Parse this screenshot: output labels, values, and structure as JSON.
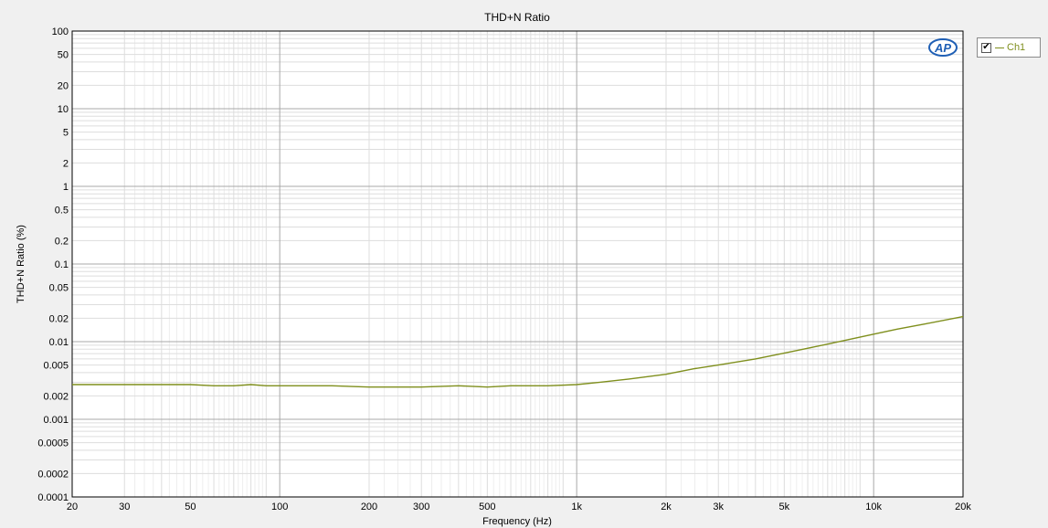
{
  "chart_data": {
    "type": "line",
    "title": "THD+N Ratio",
    "xlabel": "Frequency (Hz)",
    "ylabel": "THD+N Ratio (%)",
    "xscale": "log",
    "yscale": "log",
    "xlim": [
      20,
      20000
    ],
    "ylim": [
      0.0001,
      100
    ],
    "grid": true,
    "legend_position": "top-right",
    "x_ticks": [
      {
        "value": 20,
        "label": "20"
      },
      {
        "value": 30,
        "label": "30"
      },
      {
        "value": 50,
        "label": "50"
      },
      {
        "value": 100,
        "label": "100"
      },
      {
        "value": 200,
        "label": "200"
      },
      {
        "value": 300,
        "label": "300"
      },
      {
        "value": 500,
        "label": "500"
      },
      {
        "value": 1000,
        "label": "1k"
      },
      {
        "value": 2000,
        "label": "2k"
      },
      {
        "value": 3000,
        "label": "3k"
      },
      {
        "value": 5000,
        "label": "5k"
      },
      {
        "value": 10000,
        "label": "10k"
      },
      {
        "value": 20000,
        "label": "20k"
      }
    ],
    "y_ticks": [
      {
        "value": 100,
        "label": "100"
      },
      {
        "value": 50,
        "label": "50"
      },
      {
        "value": 20,
        "label": "20"
      },
      {
        "value": 10,
        "label": "10"
      },
      {
        "value": 5,
        "label": "5"
      },
      {
        "value": 2,
        "label": "2"
      },
      {
        "value": 1,
        "label": "1"
      },
      {
        "value": 0.5,
        "label": "0.5"
      },
      {
        "value": 0.2,
        "label": "0.2"
      },
      {
        "value": 0.1,
        "label": "0.1"
      },
      {
        "value": 0.05,
        "label": "0.05"
      },
      {
        "value": 0.02,
        "label": "0.02"
      },
      {
        "value": 0.01,
        "label": "0.01"
      },
      {
        "value": 0.005,
        "label": "0.005"
      },
      {
        "value": 0.002,
        "label": "0.002"
      },
      {
        "value": 0.001,
        "label": "0.001"
      },
      {
        "value": 0.0005,
        "label": "0.0005"
      },
      {
        "value": 0.0002,
        "label": "0.0002"
      },
      {
        "value": 0.0001,
        "label": "0.0001"
      }
    ],
    "series": [
      {
        "name": "Ch1",
        "color": "#7f8f1d",
        "x": [
          20,
          30,
          50,
          60,
          70,
          80,
          90,
          100,
          150,
          200,
          300,
          400,
          500,
          600,
          700,
          800,
          1000,
          1200,
          1500,
          2000,
          2500,
          3000,
          4000,
          5000,
          7000,
          10000,
          12000,
          15000,
          20000
        ],
        "y": [
          0.0028,
          0.0028,
          0.0028,
          0.0027,
          0.0027,
          0.0028,
          0.0027,
          0.0027,
          0.0027,
          0.0026,
          0.0026,
          0.0027,
          0.0026,
          0.0027,
          0.0027,
          0.0027,
          0.0028,
          0.003,
          0.0033,
          0.0038,
          0.0045,
          0.005,
          0.006,
          0.0071,
          0.0093,
          0.0125,
          0.0145,
          0.017,
          0.021
        ]
      }
    ]
  },
  "watermark": "AP",
  "legend": {
    "checked": "✔",
    "label": "Ch1",
    "color": "#7f8f1d"
  }
}
